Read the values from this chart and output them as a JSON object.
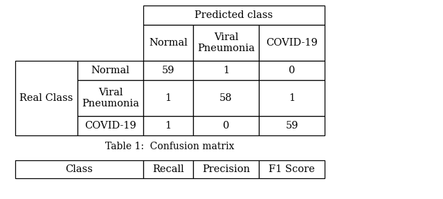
{
  "bg_color": "#ffffff",
  "caption": "Table 1:  Confusion matrix",
  "predicted_header": "Predicted class",
  "real_class_label": "Real Class",
  "col_headers": [
    "Normal",
    "Viral\nPneumonia",
    "COVID-19"
  ],
  "row_headers": [
    "Normal",
    "Viral\nPneumonia",
    "COVID-19"
  ],
  "matrix": [
    [
      59,
      1,
      0
    ],
    [
      1,
      58,
      1
    ],
    [
      1,
      0,
      59
    ]
  ],
  "second_table_headers": [
    "Class",
    "Recall",
    "Precision",
    "F1 Score"
  ],
  "font_size": 10.5,
  "caption_font_size": 10
}
